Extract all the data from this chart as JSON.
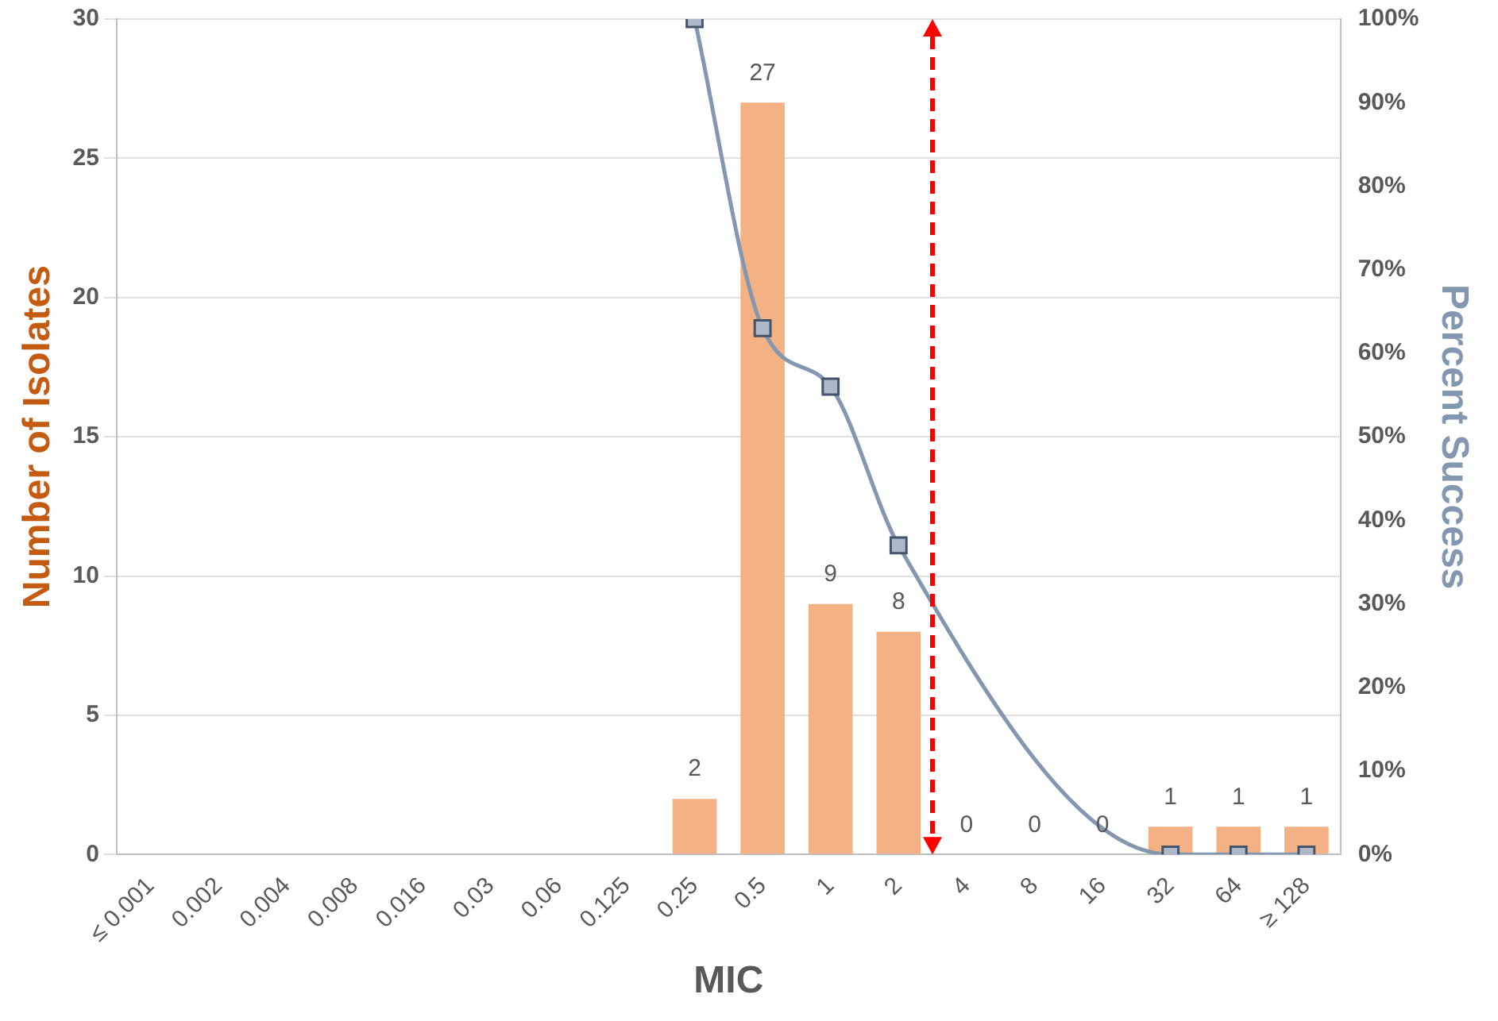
{
  "chart_data": {
    "type": "bar",
    "xlabel": "MIC",
    "ylabel": "Number of Isolates",
    "y2label": "Percent Success",
    "categories": [
      "≤ 0.001",
      "0.002",
      "0.004",
      "0.008",
      "0.016",
      "0.03",
      "0.06",
      "0.125",
      "0.25",
      "0.5",
      "1",
      "2",
      "4",
      "8",
      "16",
      "32",
      "64",
      "≥ 128"
    ],
    "series": [
      {
        "color": "#f4b183",
        "values": [
          0,
          0,
          0,
          0,
          0,
          0,
          0,
          0,
          2,
          27,
          9,
          8,
          0,
          0,
          0,
          1,
          1,
          1
        ],
        "value_labels": [
          null,
          null,
          null,
          null,
          null,
          null,
          null,
          null,
          "2",
          "27",
          "9",
          "8",
          "0",
          "0",
          "0",
          "1",
          "1",
          "1"
        ]
      },
      {
        "type": "line",
        "axis": "y2",
        "color": "#8497b0",
        "marker": "square",
        "values": [
          null,
          null,
          null,
          null,
          null,
          null,
          null,
          null,
          100,
          63,
          56,
          37,
          null,
          null,
          null,
          0,
          0,
          0
        ]
      }
    ],
    "ylim": [
      0,
      30
    ],
    "yticks": [
      0,
      5,
      10,
      15,
      20,
      25,
      30
    ],
    "y2lim": [
      0,
      100
    ],
    "y2ticks": [
      {
        "value": 0,
        "label": "0%"
      },
      {
        "value": 10,
        "label": "10%"
      },
      {
        "value": 20,
        "label": "20%"
      },
      {
        "value": 30,
        "label": "30%"
      },
      {
        "value": 40,
        "label": "40%"
      },
      {
        "value": 50,
        "label": "50%"
      },
      {
        "value": 60,
        "label": "60%"
      },
      {
        "value": 70,
        "label": "70%"
      },
      {
        "value": 80,
        "label": "80%"
      },
      {
        "value": 90,
        "label": "90%"
      },
      {
        "value": 100,
        "label": "100%"
      }
    ],
    "grid": "y",
    "legend": false
  }
}
